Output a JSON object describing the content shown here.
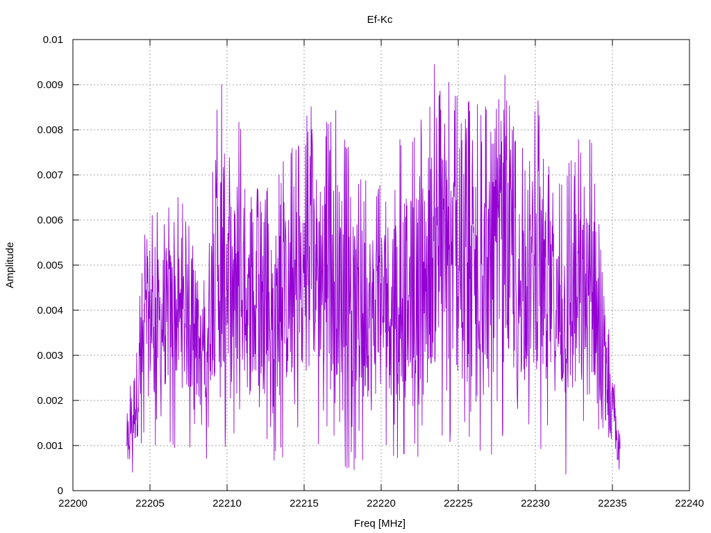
{
  "chart_data": {
    "type": "line",
    "title": "Ef-Kc",
    "xlabel": "Freq [MHz]",
    "ylabel": "Amplitude",
    "xlim": [
      22200,
      22240
    ],
    "ylim": [
      0,
      0.01
    ],
    "x_ticks": [
      "22200",
      "22205",
      "22210",
      "22215",
      "22220",
      "22225",
      "22230",
      "22235",
      "22240"
    ],
    "y_ticks": [
      "0",
      "0.001",
      "0.002",
      "0.003",
      "0.004",
      "0.005",
      "0.006",
      "0.007",
      "0.008",
      "0.009",
      "0.01"
    ],
    "grid": true,
    "legend": "none",
    "series": [
      {
        "color": "#9400d3",
        "x_range": [
          22203.5,
          22235.5
        ],
        "envelope_peaks": [
          {
            "x": 22203.6,
            "y": 0.0021
          },
          {
            "x": 22203.9,
            "y": 0.0031
          },
          {
            "x": 22204.6,
            "y": 0.0055
          },
          {
            "x": 22205.0,
            "y": 0.0069
          },
          {
            "x": 22205.3,
            "y": 0.0062
          },
          {
            "x": 22206.4,
            "y": 0.0067
          },
          {
            "x": 22207.3,
            "y": 0.0063
          },
          {
            "x": 22208.3,
            "y": 0.005
          },
          {
            "x": 22208.7,
            "y": 0.0065
          },
          {
            "x": 22209.4,
            "y": 0.0089
          },
          {
            "x": 22209.7,
            "y": 0.0096
          },
          {
            "x": 22210.4,
            "y": 0.0075
          },
          {
            "x": 22210.7,
            "y": 0.009
          },
          {
            "x": 22211.5,
            "y": 0.0067
          },
          {
            "x": 22213.0,
            "y": 0.007
          },
          {
            "x": 22214.5,
            "y": 0.008
          },
          {
            "x": 22214.9,
            "y": 0.0084
          },
          {
            "x": 22216.2,
            "y": 0.0089
          },
          {
            "x": 22217.4,
            "y": 0.0084
          },
          {
            "x": 22218.1,
            "y": 0.0073
          },
          {
            "x": 22219.9,
            "y": 0.0073
          },
          {
            "x": 22221.0,
            "y": 0.0079
          },
          {
            "x": 22222.5,
            "y": 0.0082
          },
          {
            "x": 22223.1,
            "y": 0.0095
          },
          {
            "x": 22224.5,
            "y": 0.0094
          },
          {
            "x": 22225.2,
            "y": 0.0086
          },
          {
            "x": 22226.3,
            "y": 0.0091
          },
          {
            "x": 22227.2,
            "y": 0.0083
          },
          {
            "x": 22227.8,
            "y": 0.0097
          },
          {
            "x": 22228.7,
            "y": 0.008
          },
          {
            "x": 22230.2,
            "y": 0.0088
          },
          {
            "x": 22230.5,
            "y": 0.0079
          },
          {
            "x": 22231.5,
            "y": 0.0069
          },
          {
            "x": 22232.8,
            "y": 0.0079
          },
          {
            "x": 22233.3,
            "y": 0.0077
          },
          {
            "x": 22233.9,
            "y": 0.0088
          },
          {
            "x": 22234.3,
            "y": 0.005
          },
          {
            "x": 22235.1,
            "y": 0.0027
          },
          {
            "x": 22235.4,
            "y": 0.0016
          }
        ],
        "envelope_troughs": [
          {
            "x": 22203.6,
            "y": 0.0002
          },
          {
            "x": 22204.0,
            "y": 0.0001
          },
          {
            "x": 22205.3,
            "y": 0.0008
          },
          {
            "x": 22207.0,
            "y": 0.0009
          },
          {
            "x": 22209.5,
            "y": 0.0006
          },
          {
            "x": 22210.7,
            "y": 0.0005
          },
          {
            "x": 22213.5,
            "y": 0.0006
          },
          {
            "x": 22214.3,
            "y": 0.0005
          },
          {
            "x": 22215.5,
            "y": 0.0008
          },
          {
            "x": 22218.2,
            "y": 0.0004
          },
          {
            "x": 22219.6,
            "y": 0.0003
          },
          {
            "x": 22220.9,
            "y": 0.0005
          },
          {
            "x": 22223.3,
            "y": 0.0005
          },
          {
            "x": 22224.0,
            "y": 0.0004
          },
          {
            "x": 22226.4,
            "y": 0.0006
          },
          {
            "x": 22227.0,
            "y": 0.0006
          },
          {
            "x": 22229.0,
            "y": 0.0006
          },
          {
            "x": 22231.0,
            "y": 0.0007
          },
          {
            "x": 22232.3,
            "y": 0.0
          },
          {
            "x": 22234.8,
            "y": 0.0003
          },
          {
            "x": 22235.4,
            "y": 0.0002
          }
        ]
      }
    ]
  }
}
